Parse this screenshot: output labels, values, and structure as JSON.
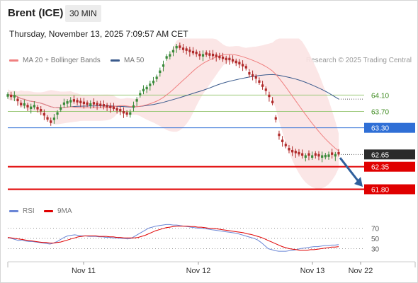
{
  "header": {
    "instrument": "Brent (ICE)",
    "timeframe": "30 MIN",
    "datetime": "Thursday, November 13, 2025 7:09:57 AM CET"
  },
  "legend": {
    "ma20_label": "MA 20 + Bollinger Bands",
    "ma50_label": "MA 50",
    "rsi_label": "RSI",
    "ma9_label": "9MA",
    "credit": "Research © 2025 Trading Central"
  },
  "colors": {
    "ma20": "#f08080",
    "ma50": "#3a5a8c",
    "band_fill": "#fbe3e3",
    "candle_up": "#3a8a3a",
    "candle_down": "#b02a2a",
    "resistance": "#9cc97a",
    "pivot": "#2f6fd6",
    "support": "#e00000",
    "current": "#2b2b2b",
    "rsi": "#6a86d6",
    "rsi_ma": "#e00000",
    "arrow": "#2f5f9c"
  },
  "chart_data": [
    {
      "type": "candlestick",
      "title": "Brent (ICE)",
      "timeframe": "30 MIN",
      "x_ticks": [
        "Nov 11",
        "Nov 12",
        "Nov 13",
        "Nov 22"
      ],
      "ylim": [
        61.55,
        64.78
      ],
      "levels": [
        {
          "label": "64.10",
          "value": 64.1,
          "kind": "resistance"
        },
        {
          "label": "63.70",
          "value": 63.7,
          "kind": "resistance"
        },
        {
          "label": "63.30",
          "value": 63.3,
          "kind": "pivot"
        },
        {
          "label": "62.65",
          "value": 62.65,
          "kind": "current"
        },
        {
          "label": "62.35",
          "value": 62.35,
          "kind": "support"
        },
        {
          "label": "61.80",
          "value": 61.8,
          "kind": "support"
        }
      ],
      "close": [
        64.12,
        64.05,
        64.1,
        63.95,
        63.85,
        63.9,
        63.8,
        63.82,
        63.86,
        63.75,
        63.7,
        63.6,
        63.5,
        63.42,
        63.55,
        63.68,
        63.8,
        63.92,
        63.95,
        63.98,
        63.94,
        63.92,
        63.9,
        63.88,
        63.86,
        63.9,
        63.87,
        63.85,
        63.83,
        63.82,
        63.8,
        63.78,
        63.76,
        63.72,
        63.7,
        63.65,
        63.62,
        63.68,
        63.85,
        64.0,
        64.15,
        64.25,
        64.3,
        64.38,
        64.45,
        64.55,
        64.7,
        64.85,
        65.05,
        65.1,
        65.2,
        65.3,
        65.25,
        65.2,
        65.18,
        65.15,
        65.12,
        65.1,
        65.05,
        65.1,
        65.08,
        65.06,
        65.05,
        65.03,
        65.0,
        64.98,
        64.95,
        64.95,
        64.92,
        64.88,
        64.85,
        64.8,
        64.75,
        64.6,
        64.55,
        64.5,
        64.4,
        64.3,
        64.2,
        64.05,
        63.9,
        63.5,
        63.1,
        62.95,
        62.85,
        62.75,
        62.7,
        62.68,
        62.65,
        62.62,
        62.63,
        62.62,
        62.63,
        62.62,
        62.6,
        62.63,
        62.64,
        62.65,
        62.64,
        62.66,
        62.65
      ],
      "candle_up_flags": [
        1,
        0,
        1,
        0,
        0,
        1,
        0,
        1,
        1,
        0,
        0,
        0,
        0,
        0,
        1,
        1,
        1,
        1,
        1,
        1,
        0,
        0,
        0,
        0,
        0,
        1,
        0,
        0,
        0,
        0,
        0,
        0,
        0,
        0,
        0,
        0,
        0,
        1,
        1,
        1,
        1,
        1,
        1,
        1,
        1,
        1,
        1,
        1,
        1,
        1,
        1,
        1,
        0,
        0,
        0,
        0,
        0,
        0,
        0,
        1,
        0,
        0,
        0,
        0,
        0,
        0,
        0,
        0,
        0,
        0,
        0,
        0,
        0,
        0,
        0,
        0,
        0,
        0,
        0,
        0,
        0,
        0,
        0,
        0,
        0,
        0,
        0,
        0,
        0,
        0,
        1,
        0,
        1,
        0,
        0,
        1,
        1,
        1,
        0,
        1,
        0
      ],
      "ma20_label": "MA 20 + Bollinger Bands",
      "ma50_label": "MA 50",
      "projection": "down toward 61.80"
    },
    {
      "type": "line",
      "title": "RSI",
      "series": [
        {
          "name": "RSI",
          "values": [
            52,
            50,
            48,
            46,
            47,
            45,
            44,
            44,
            43,
            42,
            41,
            40,
            39,
            41,
            44,
            48,
            52,
            55,
            56,
            57,
            56,
            55,
            55,
            54,
            54,
            54,
            53,
            53,
            52,
            52,
            51,
            51,
            50,
            50,
            49,
            50,
            54,
            58,
            62,
            66,
            70,
            72,
            74,
            75,
            76,
            77,
            77,
            76,
            76,
            75,
            74,
            73,
            72,
            71,
            70,
            70,
            69,
            68,
            67,
            66,
            65,
            64,
            63,
            62,
            61,
            60,
            58,
            56,
            54,
            52,
            50,
            47,
            42,
            36,
            30,
            28,
            26,
            25,
            25,
            25,
            26,
            27,
            28,
            30,
            31,
            32,
            33,
            34,
            34,
            35,
            36,
            36,
            37,
            37,
            38
          ]
        },
        {
          "name": "9MA",
          "values": [
            52,
            51,
            50,
            49,
            48,
            47,
            46,
            45,
            44,
            43,
            42,
            42,
            41,
            41,
            42,
            43,
            45,
            47,
            49,
            51,
            53,
            54,
            55,
            55,
            55,
            55,
            54,
            54,
            54,
            53,
            53,
            52,
            52,
            51,
            51,
            51,
            51,
            52,
            54,
            56,
            59,
            62,
            65,
            67,
            69,
            71,
            72,
            73,
            74,
            74,
            74,
            74,
            73,
            73,
            72,
            72,
            71,
            70,
            70,
            69,
            68,
            67,
            66,
            65,
            64,
            63,
            62,
            61,
            59,
            58,
            56,
            54,
            52,
            49,
            46,
            43,
            40,
            37,
            34,
            32,
            30,
            29,
            28,
            27,
            27,
            27,
            28,
            28,
            29,
            30,
            31,
            32,
            33,
            33,
            34
          ]
        }
      ],
      "levels": [
        70,
        50,
        30
      ],
      "level_labels": [
        "70",
        "50",
        "30"
      ]
    }
  ]
}
